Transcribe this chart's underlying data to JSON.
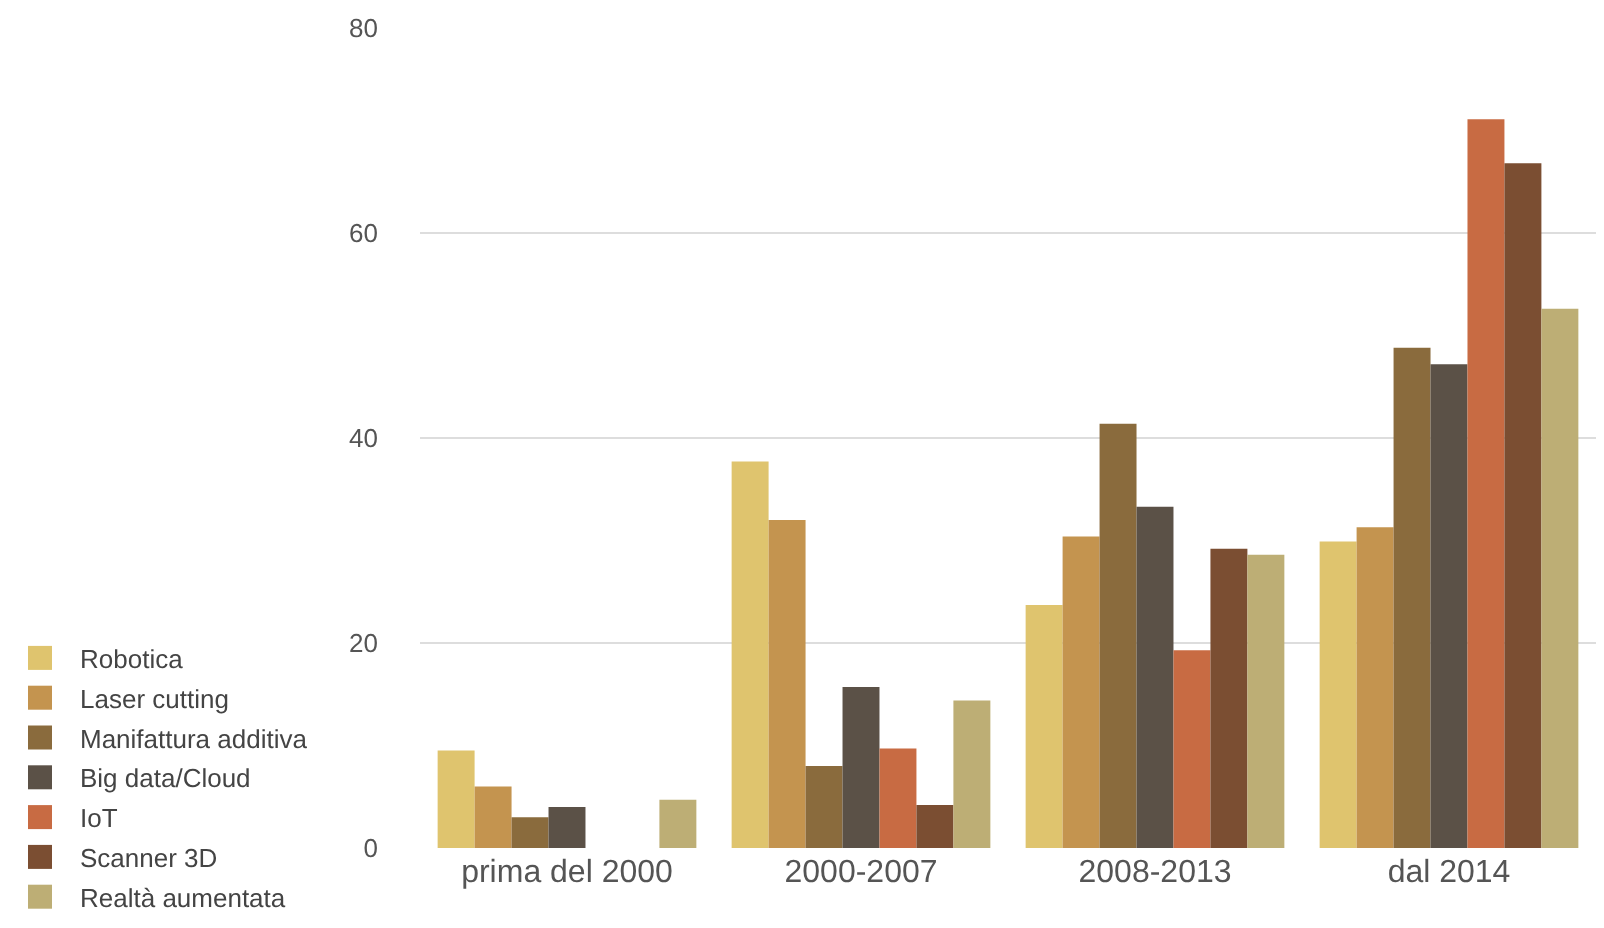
{
  "chart_data": {
    "type": "bar",
    "categories": [
      "prima del 2000",
      "2000-2007",
      "2008-2013",
      "dal 2014"
    ],
    "series": [
      {
        "name": "Robotica",
        "color": "#dfc46e",
        "values": [
          9.5,
          37.7,
          23.7,
          29.9
        ]
      },
      {
        "name": "Laser cutting",
        "color": "#c4944f",
        "values": [
          6,
          32,
          30.4,
          31.3
        ]
      },
      {
        "name": "Manifattura additiva",
        "color": "#8a6b3d",
        "values": [
          3,
          8,
          41.4,
          48.8
        ]
      },
      {
        "name": "Big data/Cloud",
        "color": "#5b5147",
        "values": [
          4,
          15.7,
          33.3,
          47.2
        ]
      },
      {
        "name": "IoT",
        "color": "#c86b43",
        "values": [
          null,
          9.7,
          19.3,
          71.1
        ]
      },
      {
        "name": "Scanner 3D",
        "color": "#7b4e32",
        "values": [
          null,
          4.2,
          29.2,
          66.8
        ]
      },
      {
        "name": "Realtà aumentata",
        "color": "#bdae75",
        "values": [
          4.7,
          14.4,
          28.6,
          52.6
        ]
      }
    ],
    "ylim": [
      0,
      80
    ],
    "yticks": [
      0,
      20,
      40,
      60,
      80
    ],
    "grid": "y",
    "legend": "bottom left"
  }
}
